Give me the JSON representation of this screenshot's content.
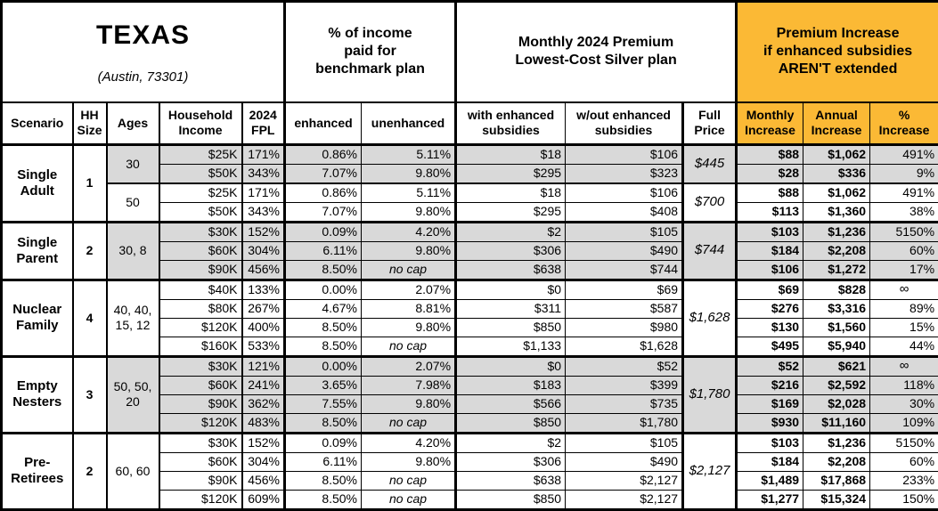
{
  "colors": {
    "accent_orange": "#FBB935",
    "row_shade": "#D9D9D9"
  },
  "header": {
    "region": {
      "title": "TEXAS",
      "subtitle": "(Austin, 73301)"
    },
    "groups": [
      {
        "label": "% of income\npaid for\nbenchmark plan"
      },
      {
        "label": "Monthly 2024 Premium\nLowest-Cost Silver plan"
      },
      {
        "label": "Premium Increase\nif enhanced subsidies\nAREN'T extended"
      }
    ],
    "columns": [
      "Scenario",
      "HH\nSize",
      "Ages",
      "Household\nIncome",
      "2024\nFPL",
      "enhanced",
      "unenhanced",
      "with enhanced\nsubsidies",
      "w/out enhanced\nsubsidies",
      "Full\nPrice",
      "Monthly\nIncrease",
      "Annual\nIncrease",
      "%\nIncrease"
    ]
  },
  "scenarios": [
    {
      "name": "Single Adult",
      "hh_size": "1",
      "age_groups": [
        {
          "ages": "30",
          "shaded": true,
          "full_price": "$445",
          "rows": [
            {
              "income": "$25K",
              "fpl": "171%",
              "enhanced": "0.86%",
              "unenhanced": "5.11%",
              "with_subsidies": "$18",
              "without_subsidies": "$106",
              "monthly": "$88",
              "annual": "$1,062",
              "pct": "491%"
            },
            {
              "income": "$50K",
              "fpl": "343%",
              "enhanced": "7.07%",
              "unenhanced": "9.80%",
              "with_subsidies": "$295",
              "without_subsidies": "$323",
              "monthly": "$28",
              "annual": "$336",
              "pct": "9%"
            }
          ]
        },
        {
          "ages": "50",
          "shaded": false,
          "full_price": "$700",
          "rows": [
            {
              "income": "$25K",
              "fpl": "171%",
              "enhanced": "0.86%",
              "unenhanced": "5.11%",
              "with_subsidies": "$18",
              "without_subsidies": "$106",
              "monthly": "$88",
              "annual": "$1,062",
              "pct": "491%"
            },
            {
              "income": "$50K",
              "fpl": "343%",
              "enhanced": "7.07%",
              "unenhanced": "9.80%",
              "with_subsidies": "$295",
              "without_subsidies": "$408",
              "monthly": "$113",
              "annual": "$1,360",
              "pct": "38%"
            }
          ]
        }
      ]
    },
    {
      "name": "Single Parent",
      "hh_size": "2",
      "age_groups": [
        {
          "ages": "30, 8",
          "shaded": true,
          "full_price": "$744",
          "rows": [
            {
              "income": "$30K",
              "fpl": "152%",
              "enhanced": "0.09%",
              "unenhanced": "4.20%",
              "with_subsidies": "$2",
              "without_subsidies": "$105",
              "monthly": "$103",
              "annual": "$1,236",
              "pct": "5150%"
            },
            {
              "income": "$60K",
              "fpl": "304%",
              "enhanced": "6.11%",
              "unenhanced": "9.80%",
              "with_subsidies": "$306",
              "without_subsidies": "$490",
              "monthly": "$184",
              "annual": "$2,208",
              "pct": "60%"
            },
            {
              "income": "$90K",
              "fpl": "456%",
              "enhanced": "8.50%",
              "unenhanced": "no cap",
              "with_subsidies": "$638",
              "without_subsidies": "$744",
              "monthly": "$106",
              "annual": "$1,272",
              "pct": "17%"
            }
          ]
        }
      ]
    },
    {
      "name": "Nuclear Family",
      "hh_size": "4",
      "age_groups": [
        {
          "ages": "40, 40, 15, 12",
          "shaded": false,
          "full_price": "$1,628",
          "rows": [
            {
              "income": "$40K",
              "fpl": "133%",
              "enhanced": "0.00%",
              "unenhanced": "2.07%",
              "with_subsidies": "$0",
              "without_subsidies": "$69",
              "monthly": "$69",
              "annual": "$828",
              "pct": "∞"
            },
            {
              "income": "$80K",
              "fpl": "267%",
              "enhanced": "4.67%",
              "unenhanced": "8.81%",
              "with_subsidies": "$311",
              "without_subsidies": "$587",
              "monthly": "$276",
              "annual": "$3,316",
              "pct": "89%"
            },
            {
              "income": "$120K",
              "fpl": "400%",
              "enhanced": "8.50%",
              "unenhanced": "9.80%",
              "with_subsidies": "$850",
              "without_subsidies": "$980",
              "monthly": "$130",
              "annual": "$1,560",
              "pct": "15%"
            },
            {
              "income": "$160K",
              "fpl": "533%",
              "enhanced": "8.50%",
              "unenhanced": "no cap",
              "with_subsidies": "$1,133",
              "without_subsidies": "$1,628",
              "monthly": "$495",
              "annual": "$5,940",
              "pct": "44%"
            }
          ]
        }
      ]
    },
    {
      "name": "Empty Nesters",
      "hh_size": "3",
      "age_groups": [
        {
          "ages": "50, 50, 20",
          "shaded": true,
          "full_price": "$1,780",
          "rows": [
            {
              "income": "$30K",
              "fpl": "121%",
              "enhanced": "0.00%",
              "unenhanced": "2.07%",
              "with_subsidies": "$0",
              "without_subsidies": "$52",
              "monthly": "$52",
              "annual": "$621",
              "pct": "∞"
            },
            {
              "income": "$60K",
              "fpl": "241%",
              "enhanced": "3.65%",
              "unenhanced": "7.98%",
              "with_subsidies": "$183",
              "without_subsidies": "$399",
              "monthly": "$216",
              "annual": "$2,592",
              "pct": "118%"
            },
            {
              "income": "$90K",
              "fpl": "362%",
              "enhanced": "7.55%",
              "unenhanced": "9.80%",
              "with_subsidies": "$566",
              "without_subsidies": "$735",
              "monthly": "$169",
              "annual": "$2,028",
              "pct": "30%"
            },
            {
              "income": "$120K",
              "fpl": "483%",
              "enhanced": "8.50%",
              "unenhanced": "no cap",
              "with_subsidies": "$850",
              "without_subsidies": "$1,780",
              "monthly": "$930",
              "annual": "$11,160",
              "pct": "109%"
            }
          ]
        }
      ]
    },
    {
      "name": "Pre-Retirees",
      "hh_size": "2",
      "age_groups": [
        {
          "ages": "60, 60",
          "shaded": false,
          "full_price": "$2,127",
          "rows": [
            {
              "income": "$30K",
              "fpl": "152%",
              "enhanced": "0.09%",
              "unenhanced": "4.20%",
              "with_subsidies": "$2",
              "without_subsidies": "$105",
              "monthly": "$103",
              "annual": "$1,236",
              "pct": "5150%"
            },
            {
              "income": "$60K",
              "fpl": "304%",
              "enhanced": "6.11%",
              "unenhanced": "9.80%",
              "with_subsidies": "$306",
              "without_subsidies": "$490",
              "monthly": "$184",
              "annual": "$2,208",
              "pct": "60%"
            },
            {
              "income": "$90K",
              "fpl": "456%",
              "enhanced": "8.50%",
              "unenhanced": "no cap",
              "with_subsidies": "$638",
              "without_subsidies": "$2,127",
              "monthly": "$1,489",
              "annual": "$17,868",
              "pct": "233%"
            },
            {
              "income": "$120K",
              "fpl": "609%",
              "enhanced": "8.50%",
              "unenhanced": "no cap",
              "with_subsidies": "$850",
              "without_subsidies": "$2,127",
              "monthly": "$1,277",
              "annual": "$15,324",
              "pct": "150%"
            }
          ]
        }
      ]
    }
  ],
  "chart_data": {
    "type": "table",
    "title": "TEXAS (Austin, 73301) — Monthly 2024 Premium, Lowest-Cost Silver plan",
    "columns": [
      "Scenario",
      "HH Size",
      "Ages",
      "Household Income",
      "2024 FPL",
      "enhanced",
      "unenhanced",
      "with enhanced subsidies",
      "w/out enhanced subsidies",
      "Full Price",
      "Monthly Increase",
      "Annual Increase",
      "% Increase"
    ],
    "rows": [
      [
        "Single Adult",
        "1",
        "30",
        "$25K",
        "171%",
        "0.86%",
        "5.11%",
        "$18",
        "$106",
        "$445",
        "$88",
        "$1,062",
        "491%"
      ],
      [
        "Single Adult",
        "1",
        "30",
        "$50K",
        "343%",
        "7.07%",
        "9.80%",
        "$295",
        "$323",
        "$445",
        "$28",
        "$336",
        "9%"
      ],
      [
        "Single Adult",
        "1",
        "50",
        "$25K",
        "171%",
        "0.86%",
        "5.11%",
        "$18",
        "$106",
        "$700",
        "$88",
        "$1,062",
        "491%"
      ],
      [
        "Single Adult",
        "1",
        "50",
        "$50K",
        "343%",
        "7.07%",
        "9.80%",
        "$295",
        "$408",
        "$700",
        "$113",
        "$1,360",
        "38%"
      ],
      [
        "Single Parent",
        "2",
        "30, 8",
        "$30K",
        "152%",
        "0.09%",
        "4.20%",
        "$2",
        "$105",
        "$744",
        "$103",
        "$1,236",
        "5150%"
      ],
      [
        "Single Parent",
        "2",
        "30, 8",
        "$60K",
        "304%",
        "6.11%",
        "9.80%",
        "$306",
        "$490",
        "$744",
        "$184",
        "$2,208",
        "60%"
      ],
      [
        "Single Parent",
        "2",
        "30, 8",
        "$90K",
        "456%",
        "8.50%",
        "no cap",
        "$638",
        "$744",
        "$744",
        "$106",
        "$1,272",
        "17%"
      ],
      [
        "Nuclear Family",
        "4",
        "40, 40, 15, 12",
        "$40K",
        "133%",
        "0.00%",
        "2.07%",
        "$0",
        "$69",
        "$1,628",
        "$69",
        "$828",
        "∞"
      ],
      [
        "Nuclear Family",
        "4",
        "40, 40, 15, 12",
        "$80K",
        "267%",
        "4.67%",
        "8.81%",
        "$311",
        "$587",
        "$1,628",
        "$276",
        "$3,316",
        "89%"
      ],
      [
        "Nuclear Family",
        "4",
        "40, 40, 15, 12",
        "$120K",
        "400%",
        "8.50%",
        "9.80%",
        "$850",
        "$980",
        "$1,628",
        "$130",
        "$1,560",
        "15%"
      ],
      [
        "Nuclear Family",
        "4",
        "40, 40, 15, 12",
        "$160K",
        "533%",
        "8.50%",
        "no cap",
        "$1,133",
        "$1,628",
        "$1,628",
        "$495",
        "$5,940",
        "44%"
      ],
      [
        "Empty Nesters",
        "3",
        "50, 50, 20",
        "$30K",
        "121%",
        "0.00%",
        "2.07%",
        "$0",
        "$52",
        "$1,780",
        "$52",
        "$621",
        "∞"
      ],
      [
        "Empty Nesters",
        "3",
        "50, 50, 20",
        "$60K",
        "241%",
        "3.65%",
        "7.98%",
        "$183",
        "$399",
        "$1,780",
        "$216",
        "$2,592",
        "118%"
      ],
      [
        "Empty Nesters",
        "3",
        "50, 50, 20",
        "$90K",
        "362%",
        "7.55%",
        "9.80%",
        "$566",
        "$735",
        "$1,780",
        "$169",
        "$2,028",
        "30%"
      ],
      [
        "Empty Nesters",
        "3",
        "50, 50, 20",
        "$120K",
        "483%",
        "8.50%",
        "no cap",
        "$850",
        "$1,780",
        "$1,780",
        "$930",
        "$11,160",
        "109%"
      ],
      [
        "Pre-Retirees",
        "2",
        "60, 60",
        "$30K",
        "152%",
        "0.09%",
        "4.20%",
        "$2",
        "$105",
        "$2,127",
        "$103",
        "$1,236",
        "5150%"
      ],
      [
        "Pre-Retirees",
        "2",
        "60, 60",
        "$60K",
        "304%",
        "6.11%",
        "9.80%",
        "$306",
        "$490",
        "$2,127",
        "$184",
        "$2,208",
        "60%"
      ],
      [
        "Pre-Retirees",
        "2",
        "60, 60",
        "$90K",
        "456%",
        "8.50%",
        "no cap",
        "$638",
        "$2,127",
        "$2,127",
        "$1,489",
        "$17,868",
        "233%"
      ],
      [
        "Pre-Retirees",
        "2",
        "60, 60",
        "$120K",
        "609%",
        "8.50%",
        "no cap",
        "$850",
        "$2,127",
        "$2,127",
        "$1,277",
        "$15,324",
        "150%"
      ]
    ]
  }
}
